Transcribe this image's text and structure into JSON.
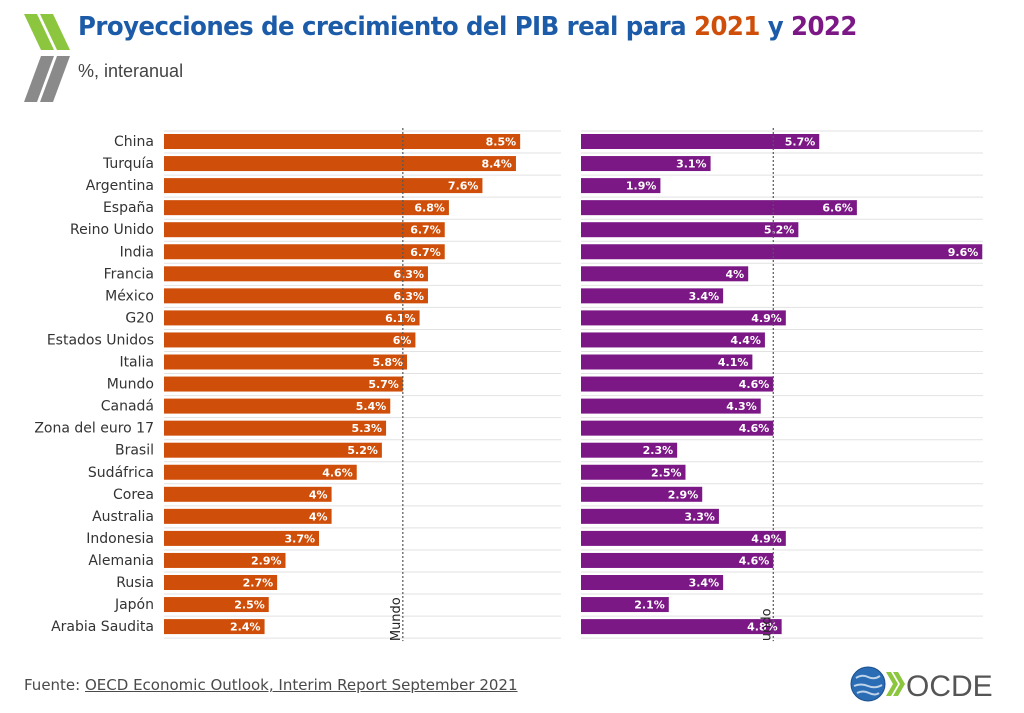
{
  "header": {
    "title_prefix": "Proyecciones de crecimiento del PIB real para",
    "year_a": "2021",
    "title_join": "y",
    "year_b": "2022",
    "subtitle": "%, interanual"
  },
  "footer": {
    "source_label": "Fuente:",
    "source_link": "OECD Economic Outlook, Interim Report September 2021",
    "logo_text": "OCDE"
  },
  "colors": {
    "title": "#1c5ba8",
    "series_2021": "#cf4f0a",
    "series_2022": "#7b1886",
    "logo_green": "#8cc63f",
    "logo_text": "#555555"
  },
  "icons": [
    "oecd-chevron-icon",
    "oecd-globe-icon"
  ],
  "chart_data": {
    "type": "bar",
    "orientation": "horizontal",
    "categories": [
      "China",
      "Turquía",
      "Argentina",
      "España",
      "Reino Unido",
      "India",
      "Francia",
      "México",
      "G20",
      "Estados Unidos",
      "Italia",
      "Mundo",
      "Canadá",
      "Zona del euro 17",
      "Brasil",
      "Sudáfrica",
      "Corea",
      "Australia",
      "Indonesia",
      "Alemania",
      "Rusia",
      "Japón",
      "Arabia Saudita"
    ],
    "series": [
      {
        "values": [
          8.5,
          8.4,
          7.6,
          6.8,
          6.7,
          6.7,
          6.3,
          6.3,
          6.1,
          6,
          5.8,
          5.7,
          5.4,
          5.3,
          5.2,
          4.6,
          4,
          4,
          3.7,
          2.9,
          2.7,
          2.5,
          2.4
        ],
        "labels": [
          "8.5%",
          "8.4%",
          "7.6%",
          "6.8%",
          "6.7%",
          "6.7%",
          "6.3%",
          "6.3%",
          "6.1%",
          "6%",
          "5.8%",
          "5.7%",
          "5.4%",
          "5.3%",
          "5.2%",
          "4.6%",
          "4%",
          "4%",
          "3.7%",
          "2.9%",
          "2.7%",
          "2.5%",
          "2.4%"
        ],
        "color": "#cf4f0a",
        "reference_value": 5.7,
        "reference_label": "Mundo"
      },
      {
        "values": [
          5.7,
          3.1,
          1.9,
          6.6,
          5.2,
          9.6,
          4,
          3.4,
          4.9,
          4.4,
          4.1,
          4.6,
          4.3,
          4.6,
          2.3,
          2.5,
          2.9,
          3.3,
          4.9,
          4.6,
          3.4,
          2.1,
          4.8
        ],
        "labels": [
          "5.7%",
          "3.1%",
          "1.9%",
          "6.6%",
          "5.2%",
          "9.6%",
          "4%",
          "3.4%",
          "4.9%",
          "4.4%",
          "4.1%",
          "4.6%",
          "4.3%",
          "4.6%",
          "2.3%",
          "2.5%",
          "2.9%",
          "3.3%",
          "4.9%",
          "4.6%",
          "3.4%",
          "2.1%",
          "4.8%"
        ],
        "color": "#7b1886",
        "reference_value": 4.6,
        "reference_label": "undo"
      }
    ],
    "grid": true,
    "legend": "none"
  }
}
